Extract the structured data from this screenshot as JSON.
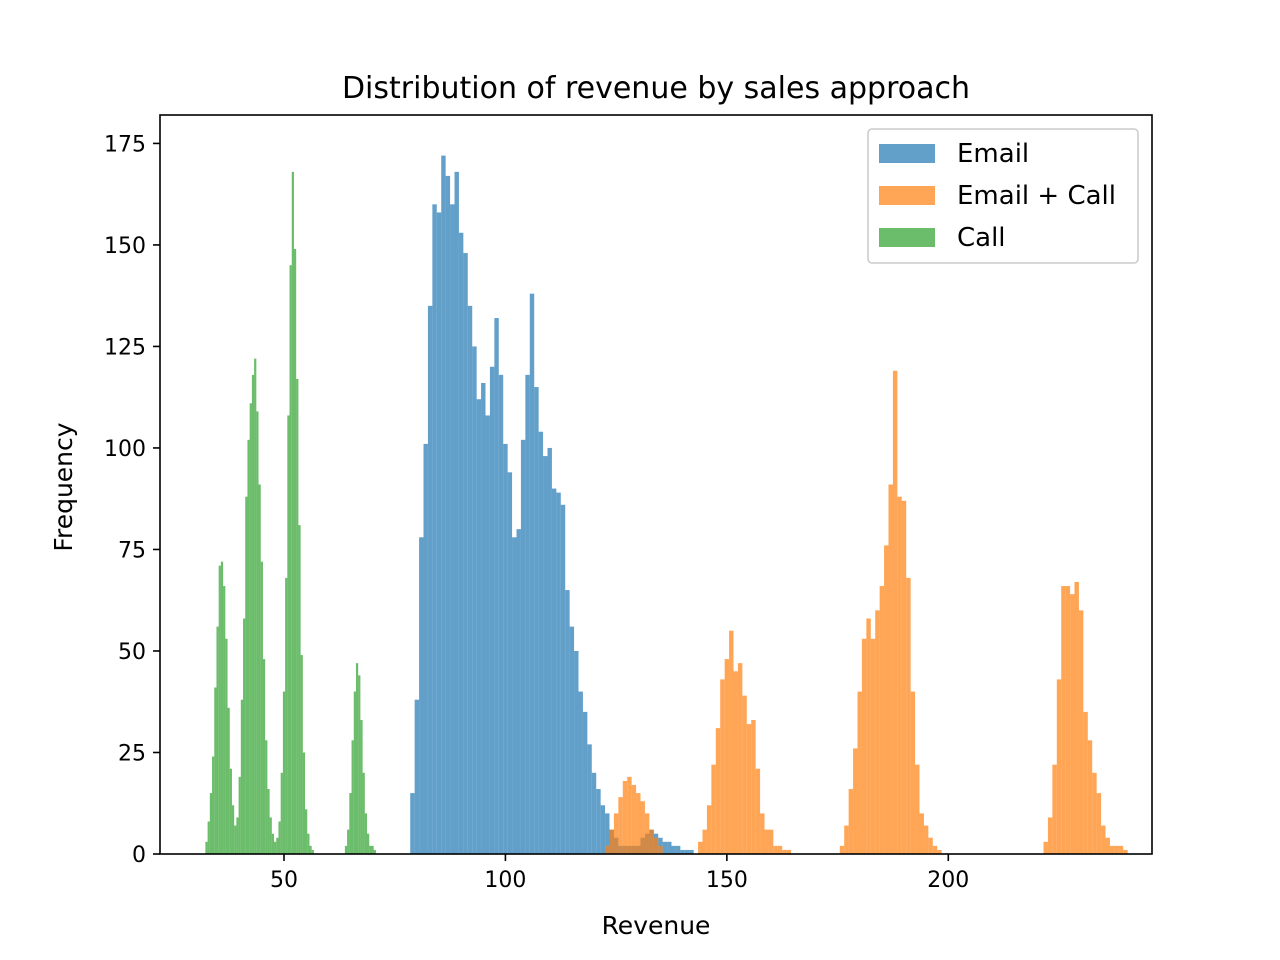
{
  "chart_data": {
    "type": "histogram",
    "title": "Distribution of revenue by sales approach",
    "xlabel": "Revenue",
    "ylabel": "Frequency",
    "xlim": [
      22,
      246
    ],
    "ylim": [
      0,
      182
    ],
    "xticks": [
      50,
      100,
      150,
      200
    ],
    "yticks": [
      0,
      25,
      50,
      75,
      100,
      125,
      150,
      175
    ],
    "grid": false,
    "legend_position": "top-right",
    "series": [
      {
        "name": "Email",
        "color": "#1f77b4",
        "opacity": 0.7,
        "bins": [
          [
            79,
            15
          ],
          [
            80,
            38
          ],
          [
            81,
            78
          ],
          [
            82,
            101
          ],
          [
            83,
            135
          ],
          [
            84,
            160
          ],
          [
            85,
            158
          ],
          [
            86,
            172
          ],
          [
            87,
            167
          ],
          [
            88,
            160
          ],
          [
            89,
            168
          ],
          [
            90,
            153
          ],
          [
            91,
            148
          ],
          [
            92,
            135
          ],
          [
            93,
            125
          ],
          [
            94,
            112
          ],
          [
            95,
            116
          ],
          [
            96,
            108
          ],
          [
            97,
            120
          ],
          [
            98,
            132
          ],
          [
            99,
            118
          ],
          [
            100,
            101
          ],
          [
            101,
            94
          ],
          [
            102,
            78
          ],
          [
            103,
            80
          ],
          [
            104,
            102
          ],
          [
            105,
            118
          ],
          [
            106,
            138
          ],
          [
            107,
            115
          ],
          [
            108,
            104
          ],
          [
            109,
            98
          ],
          [
            110,
            100
          ],
          [
            111,
            90
          ],
          [
            112,
            89
          ],
          [
            113,
            86
          ],
          [
            114,
            65
          ],
          [
            115,
            56
          ],
          [
            116,
            50
          ],
          [
            117,
            40
          ],
          [
            118,
            35
          ],
          [
            119,
            27
          ],
          [
            120,
            20
          ],
          [
            121,
            16
          ],
          [
            122,
            12
          ],
          [
            123,
            10
          ],
          [
            124,
            6
          ],
          [
            125,
            4
          ],
          [
            126,
            2
          ],
          [
            127,
            2
          ],
          [
            128,
            2
          ],
          [
            129,
            2
          ],
          [
            130,
            2
          ],
          [
            131,
            4
          ],
          [
            132,
            5
          ],
          [
            133,
            6
          ],
          [
            134,
            5
          ],
          [
            135,
            4
          ],
          [
            136,
            3
          ],
          [
            137,
            3
          ],
          [
            138,
            2
          ],
          [
            139,
            2
          ],
          [
            140,
            1
          ],
          [
            141,
            1
          ],
          [
            142,
            1
          ]
        ]
      },
      {
        "name": "Email + Call",
        "color": "#ff7f0e",
        "opacity": 0.7,
        "bins": [
          [
            123,
            2
          ],
          [
            124,
            6
          ],
          [
            125,
            10
          ],
          [
            126,
            14
          ],
          [
            127,
            18
          ],
          [
            128,
            19
          ],
          [
            129,
            17
          ],
          [
            130,
            15
          ],
          [
            131,
            13
          ],
          [
            132,
            10
          ],
          [
            133,
            6
          ],
          [
            134,
            4
          ],
          [
            135,
            2
          ],
          [
            144,
            3
          ],
          [
            145,
            6
          ],
          [
            146,
            12
          ],
          [
            147,
            22
          ],
          [
            148,
            31
          ],
          [
            149,
            43
          ],
          [
            150,
            48
          ],
          [
            151,
            55
          ],
          [
            152,
            45
          ],
          [
            153,
            47
          ],
          [
            154,
            39
          ],
          [
            155,
            32
          ],
          [
            156,
            33
          ],
          [
            157,
            21
          ],
          [
            158,
            10
          ],
          [
            159,
            6
          ],
          [
            160,
            6
          ],
          [
            161,
            2
          ],
          [
            162,
            2
          ],
          [
            163,
            1
          ],
          [
            164,
            1
          ],
          [
            176,
            2
          ],
          [
            177,
            7
          ],
          [
            178,
            16
          ],
          [
            179,
            26
          ],
          [
            180,
            40
          ],
          [
            181,
            53
          ],
          [
            182,
            58
          ],
          [
            183,
            53
          ],
          [
            184,
            60
          ],
          [
            185,
            66
          ],
          [
            186,
            76
          ],
          [
            187,
            91
          ],
          [
            188,
            119
          ],
          [
            189,
            88
          ],
          [
            190,
            87
          ],
          [
            191,
            68
          ],
          [
            192,
            40
          ],
          [
            193,
            22
          ],
          [
            194,
            10
          ],
          [
            195,
            7
          ],
          [
            196,
            4
          ],
          [
            197,
            2
          ],
          [
            198,
            1
          ],
          [
            222,
            3
          ],
          [
            223,
            9
          ],
          [
            224,
            22
          ],
          [
            225,
            43
          ],
          [
            226,
            66
          ],
          [
            227,
            66
          ],
          [
            228,
            64
          ],
          [
            229,
            67
          ],
          [
            230,
            60
          ],
          [
            231,
            35
          ],
          [
            232,
            28
          ],
          [
            233,
            20
          ],
          [
            234,
            15
          ],
          [
            235,
            7
          ],
          [
            236,
            4
          ],
          [
            237,
            2
          ],
          [
            238,
            2
          ],
          [
            239,
            2
          ],
          [
            240,
            1
          ]
        ]
      },
      {
        "name": "Call",
        "color": "#2ca02c",
        "opacity": 0.7,
        "bins": [
          [
            32.5,
            3
          ],
          [
            33,
            8
          ],
          [
            33.5,
            15
          ],
          [
            34,
            24
          ],
          [
            34.5,
            41
          ],
          [
            35,
            56
          ],
          [
            35.5,
            71
          ],
          [
            36,
            72
          ],
          [
            36.5,
            66
          ],
          [
            37,
            53
          ],
          [
            37.5,
            36
          ],
          [
            38,
            21
          ],
          [
            38.5,
            12
          ],
          [
            39,
            7
          ],
          [
            39.5,
            9
          ],
          [
            40,
            19
          ],
          [
            40.5,
            38
          ],
          [
            41,
            58
          ],
          [
            41.5,
            88
          ],
          [
            42,
            102
          ],
          [
            42.5,
            111
          ],
          [
            43,
            118
          ],
          [
            43.5,
            122
          ],
          [
            44,
            109
          ],
          [
            44.5,
            91
          ],
          [
            45,
            72
          ],
          [
            45.5,
            48
          ],
          [
            46,
            28
          ],
          [
            46.5,
            16
          ],
          [
            47,
            9
          ],
          [
            47.5,
            5
          ],
          [
            48,
            3
          ],
          [
            48.5,
            4
          ],
          [
            49,
            8
          ],
          [
            49.5,
            20
          ],
          [
            50,
            40
          ],
          [
            50.5,
            68
          ],
          [
            51,
            108
          ],
          [
            51.5,
            145
          ],
          [
            52,
            168
          ],
          [
            52.5,
            149
          ],
          [
            53,
            117
          ],
          [
            53.5,
            81
          ],
          [
            54,
            49
          ],
          [
            54.5,
            25
          ],
          [
            55,
            11
          ],
          [
            55.5,
            5
          ],
          [
            56,
            2
          ],
          [
            56.5,
            1
          ],
          [
            64,
            2
          ],
          [
            64.5,
            6
          ],
          [
            65,
            15
          ],
          [
            65.5,
            28
          ],
          [
            66,
            40
          ],
          [
            66.5,
            47
          ],
          [
            67,
            44
          ],
          [
            67.5,
            33
          ],
          [
            68,
            20
          ],
          [
            68.5,
            10
          ],
          [
            69,
            5
          ],
          [
            69.5,
            2
          ],
          [
            70,
            2
          ],
          [
            70.5,
            1
          ]
        ]
      }
    ]
  }
}
